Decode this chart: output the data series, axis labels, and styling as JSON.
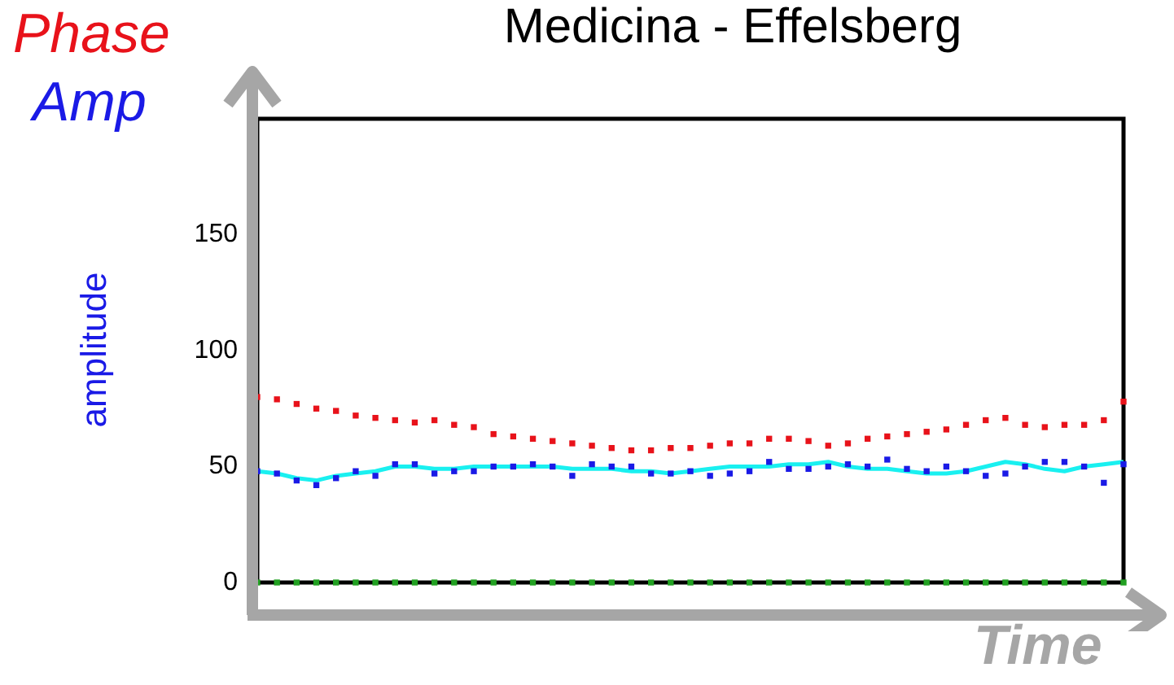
{
  "chart_data": {
    "type": "line",
    "title": "Medicina - Effelsberg",
    "ylabel": "amplitude",
    "annotations": [
      "Phase",
      "Amp",
      "Time"
    ],
    "categories": [
      null,
      null,
      null,
      null,
      null,
      null,
      null,
      null,
      null,
      null,
      null,
      null,
      null,
      null,
      null,
      null,
      null,
      null,
      null,
      null,
      null,
      null,
      null,
      null,
      null,
      null,
      null,
      null,
      null,
      null,
      null,
      null,
      null,
      null,
      null,
      null,
      null,
      null,
      null,
      null,
      null,
      null,
      null,
      null,
      null
    ],
    "series": [
      {
        "type": "scatter",
        "color": "#e8121a",
        "marker": "square",
        "values": [
          80,
          79,
          77,
          75,
          74,
          72,
          71,
          70,
          69,
          70,
          68,
          67,
          64,
          63,
          62,
          61,
          60,
          59,
          58,
          57,
          57,
          58,
          58,
          59,
          60,
          60,
          62,
          62,
          61,
          59,
          60,
          62,
          63,
          64,
          65,
          66,
          68,
          70,
          71,
          68,
          67,
          68,
          68,
          70,
          78
        ]
      },
      {
        "type": "line",
        "color": "#19f0f0",
        "marker": "none",
        "values": [
          48,
          47,
          45,
          44,
          46,
          47,
          48,
          50,
          50,
          49,
          49,
          50,
          50,
          50,
          50,
          50,
          49,
          49,
          49,
          48,
          48,
          47,
          48,
          49,
          50,
          50,
          50,
          51,
          51,
          52,
          50,
          49,
          49,
          48,
          47,
          47,
          48,
          50,
          52,
          51,
          49,
          48,
          50,
          51,
          52
        ]
      },
      {
        "type": "scatter",
        "color": "#1a1ae6",
        "marker": "square",
        "values": [
          48,
          47,
          44,
          42,
          45,
          48,
          46,
          51,
          51,
          47,
          48,
          48,
          50,
          50,
          51,
          50,
          46,
          51,
          50,
          50,
          47,
          47,
          48,
          46,
          47,
          48,
          52,
          49,
          49,
          50,
          51,
          50,
          53,
          49,
          48,
          50,
          48,
          46,
          47,
          50,
          52,
          52,
          50,
          43,
          51
        ]
      },
      {
        "type": "scatter",
        "color": "#22a022",
        "marker": "square",
        "values": [
          0,
          0,
          0,
          0,
          0,
          0,
          0,
          0,
          0,
          0,
          0,
          0,
          0,
          0,
          0,
          0,
          0,
          0,
          0,
          0,
          0,
          0,
          0,
          0,
          0,
          0,
          0,
          0,
          0,
          0,
          0,
          0,
          0,
          0,
          0,
          0,
          0,
          0,
          0,
          0,
          0,
          0,
          0,
          0,
          0
        ]
      }
    ],
    "ylim": [
      0,
      200
    ],
    "yticks": [
      0,
      50,
      100,
      150
    ],
    "tick_labels": "y",
    "grid": false,
    "legend": false
  }
}
